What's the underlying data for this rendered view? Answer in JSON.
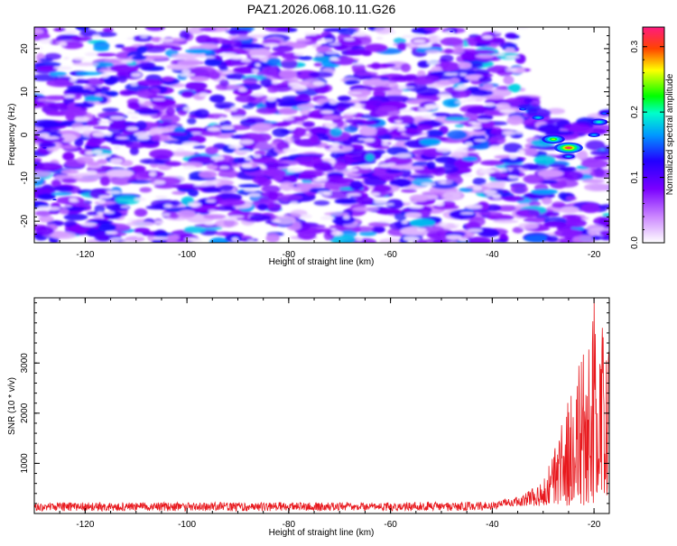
{
  "title": "PAZ1.2026.068.10.11.G26",
  "chart_data": [
    {
      "type": "heatmap",
      "xlabel": "Height of straight line (km)",
      "ylabel": "Frequency (Hz)",
      "xlim": [
        -130,
        -17
      ],
      "ylim": [
        -25,
        25
      ],
      "xticks": [
        -120,
        -100,
        -80,
        -60,
        -40,
        -20
      ],
      "yticks": [
        -20,
        -10,
        0,
        10,
        20
      ],
      "colorbar": {
        "label": "Normalized spectral amplitude",
        "range": [
          0.0,
          0.33
        ],
        "ticks": [
          0.0,
          0.1,
          0.2,
          0.3
        ],
        "tick_labels": [
          "0.0",
          "0.1",
          "0.2",
          "0.3"
        ],
        "colors": [
          "#ffffff",
          "#9900ff",
          "#2200ff",
          "#00ffff",
          "#00ff00",
          "#ffff00",
          "#ff3300",
          "#ff1a80"
        ]
      },
      "hotspots": [
        {
          "x": -25,
          "y": -3,
          "value": 0.33
        },
        {
          "x": -28,
          "y": -1,
          "value": 0.25
        },
        {
          "x": -19,
          "y": 3,
          "value": 0.2
        },
        {
          "x": -31,
          "y": 4,
          "value": 0.18
        },
        {
          "x": -34,
          "y": 6,
          "value": 0.15
        },
        {
          "x": -25,
          "y": -5,
          "value": 0.17
        },
        {
          "x": -20,
          "y": 0,
          "value": 0.17
        },
        {
          "x": -18,
          "y": 5,
          "value": 0.15
        },
        {
          "x": -126,
          "y": -15,
          "value": 0.13
        },
        {
          "x": -128,
          "y": -3,
          "value": 0.12
        },
        {
          "x": -110,
          "y": -12,
          "value": 0.1
        },
        {
          "x": -46,
          "y": -24,
          "value": 0.1
        },
        {
          "x": -48,
          "y": 24,
          "value": 0.12
        },
        {
          "x": -40,
          "y": 5,
          "value": 0.1
        }
      ],
      "blank_region": {
        "x_from": -34,
        "y_from": 9,
        "note": ""
      }
    },
    {
      "type": "line",
      "xlabel": "Height of straight line (km)",
      "ylabel": "SNR (10 * v/v)",
      "xlim": [
        -130,
        -17
      ],
      "ylim": [
        0,
        4300
      ],
      "xticks": [
        -120,
        -100,
        -80,
        -60,
        -40,
        -20
      ],
      "yticks": [
        1000,
        2000,
        3000
      ],
      "color": "#e8191e",
      "baseline_snr": 120,
      "rise_start_km": -38,
      "peak": {
        "x": -20,
        "y": 4300
      },
      "envelope": [
        {
          "x": -130,
          "y": 220
        },
        {
          "x": -40,
          "y": 230
        },
        {
          "x": -34,
          "y": 380
        },
        {
          "x": -30,
          "y": 650
        },
        {
          "x": -28,
          "y": 1200
        },
        {
          "x": -26,
          "y": 1900
        },
        {
          "x": -24,
          "y": 2800
        },
        {
          "x": -22,
          "y": 3600
        },
        {
          "x": -20,
          "y": 4300
        },
        {
          "x": -17,
          "y": 3700
        }
      ]
    }
  ]
}
